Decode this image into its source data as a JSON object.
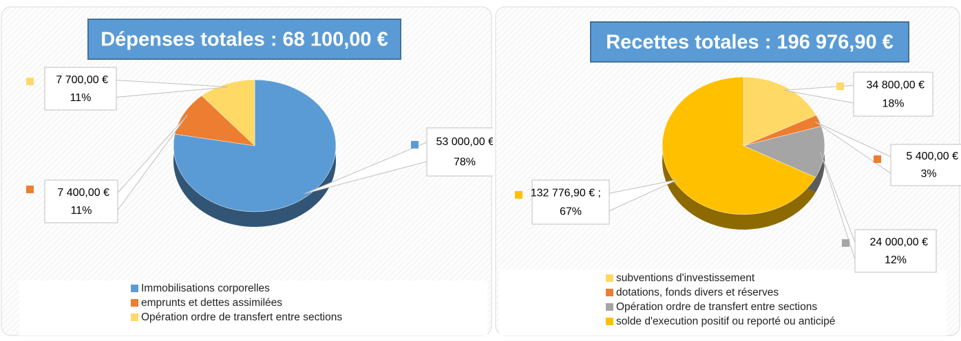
{
  "chart_data": [
    {
      "type": "pie",
      "title": "Dépenses totales : 68 100,00 €",
      "categories": [
        "Immobilisations corporelles",
        "emprunts et dettes assimilées",
        "Opération ordre de transfert entre sections"
      ],
      "values": [
        53000,
        7400,
        7700
      ],
      "value_labels": [
        "53 000,00 €",
        "7 400,00 €",
        "7 700,00 €"
      ],
      "percent_labels": [
        "78%",
        "11%",
        "11%"
      ],
      "colors": [
        "#5b9bd5",
        "#ed7d31",
        "#ffd966"
      ]
    },
    {
      "type": "pie",
      "title": "Recettes totales : 196 976,90 €",
      "categories": [
        "subventions d'investissement",
        "dotations, fonds divers et réserves",
        "Opération ordre de transfert entre sections",
        "solde d'execution positif ou reporté ou anticipé"
      ],
      "values": [
        34800,
        5400,
        24000,
        132776.9
      ],
      "value_labels": [
        "34 800,00 €",
        "5 400,00 €",
        "24 000,00 €",
        "132 776,90 € ;"
      ],
      "percent_labels": [
        "18%",
        "3%",
        "12%",
        "67%"
      ],
      "colors": [
        "#ffd966",
        "#ed7d31",
        "#a5a5a5",
        "#ffc000"
      ]
    }
  ]
}
